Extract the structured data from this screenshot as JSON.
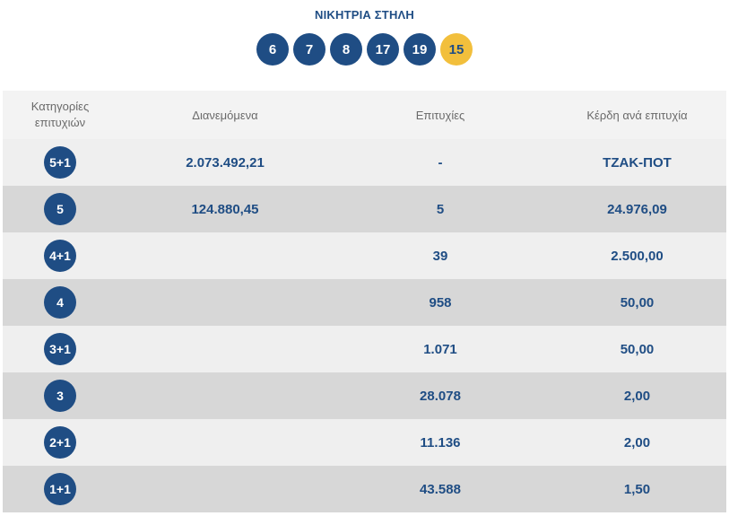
{
  "title": "ΝΙΚΗΤΡΙΑ ΣΤΗΛΗ",
  "winning_numbers": [
    "6",
    "7",
    "8",
    "17",
    "19"
  ],
  "bonus_number": "15",
  "headers": {
    "category_line1": "Κατηγορίες",
    "category_line2": "επιτυχιών",
    "distributed": "Διανεμόμενα",
    "winners": "Επιτυχίες",
    "prize_per_winner": "Κέρδη ανά επιτυχία"
  },
  "rows": [
    {
      "category": "5+1",
      "distributed": "2.073.492,21",
      "winners": "-",
      "prize": "ΤΖΑΚ-ΠΟΤ"
    },
    {
      "category": "5",
      "distributed": "124.880,45",
      "winners": "5",
      "prize": "24.976,09"
    },
    {
      "category": "4+1",
      "distributed": "",
      "winners": "39",
      "prize": "2.500,00"
    },
    {
      "category": "4",
      "distributed": "",
      "winners": "958",
      "prize": "50,00"
    },
    {
      "category": "3+1",
      "distributed": "",
      "winners": "1.071",
      "prize": "50,00"
    },
    {
      "category": "3",
      "distributed": "",
      "winners": "28.078",
      "prize": "2,00"
    },
    {
      "category": "2+1",
      "distributed": "",
      "winners": "11.136",
      "prize": "2,00"
    },
    {
      "category": "1+1",
      "distributed": "",
      "winners": "43.588",
      "prize": "1,50"
    }
  ],
  "colors": {
    "primary": "#1f4d84",
    "bonus": "#f2bf3c",
    "row_light": "#efefef",
    "row_dark": "#d7d7d7"
  }
}
